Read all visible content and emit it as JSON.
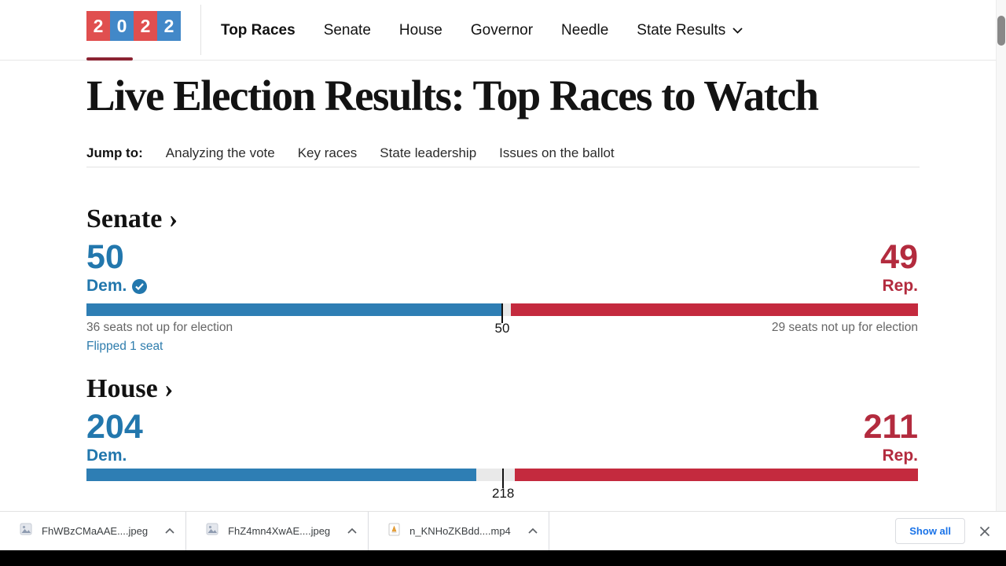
{
  "theme": {
    "dem-blue": "#2277ad",
    "dem-bar": "#2e7eb4",
    "rep-red": "#b32b3e",
    "rep-bar": "#c42a3e",
    "logo-red": "#e04f4f",
    "logo-blue": "#4288c8",
    "accent-maroon": "#8b2332",
    "link-blue": "#2f7dad",
    "chrome-blue": "#1a73e8"
  },
  "nav": {
    "logo": {
      "digits": [
        "2",
        "0",
        "2",
        "2"
      ]
    },
    "items": [
      {
        "label": "Top Races",
        "active": true
      },
      {
        "label": "Senate",
        "active": false
      },
      {
        "label": "House",
        "active": false
      },
      {
        "label": "Governor",
        "active": false
      },
      {
        "label": "Needle",
        "active": false
      },
      {
        "label": "State Results",
        "active": false,
        "has_dropdown": true
      }
    ]
  },
  "page": {
    "title": "Live Election Results: Top Races to Watch",
    "jump": {
      "label": "Jump to:",
      "links": [
        "Analyzing the vote",
        "Key races",
        "State leadership",
        "Issues on the ballot"
      ]
    }
  },
  "senate": {
    "heading": "Senate ›",
    "dem_count": "50",
    "dem_label": "Dem.",
    "rep_count": "49",
    "rep_label": "Rep.",
    "left_note": "36 seats not up for election",
    "majority_label": "50",
    "right_note": "29 seats not up for election",
    "flipped_note": "Flipped 1 seat"
  },
  "house": {
    "heading": "House ›",
    "dem_count": "204",
    "dem_label": "Dem.",
    "rep_count": "211",
    "rep_label": "Rep.",
    "majority_label": "218"
  },
  "chart_data": [
    {
      "type": "bar",
      "title": "Senate",
      "series": [
        {
          "name": "Dem.",
          "value": 50
        },
        {
          "name": "Rep.",
          "value": 49
        }
      ],
      "total": 100,
      "majority": 50,
      "annotations": [
        "36 seats not up for election",
        "29 seats not up for election",
        "Flipped 1 seat"
      ],
      "colors": {
        "dem": "#2e7eb4",
        "rep": "#c42a3e"
      }
    },
    {
      "type": "bar",
      "title": "House",
      "series": [
        {
          "name": "Dem.",
          "value": 204
        },
        {
          "name": "Rep.",
          "value": 211
        }
      ],
      "total": 435,
      "majority": 218,
      "annotations": [],
      "colors": {
        "dem": "#2e7eb4",
        "rep": "#c42a3e"
      }
    }
  ],
  "downloads": {
    "items": [
      {
        "name": "FhWBzCMaAAE....jpeg",
        "type": "image"
      },
      {
        "name": "FhZ4mn4XwAE....jpeg",
        "type": "image"
      },
      {
        "name": "n_KNHoZKBdd....mp4",
        "type": "video"
      }
    ],
    "show_all_label": "Show all"
  }
}
